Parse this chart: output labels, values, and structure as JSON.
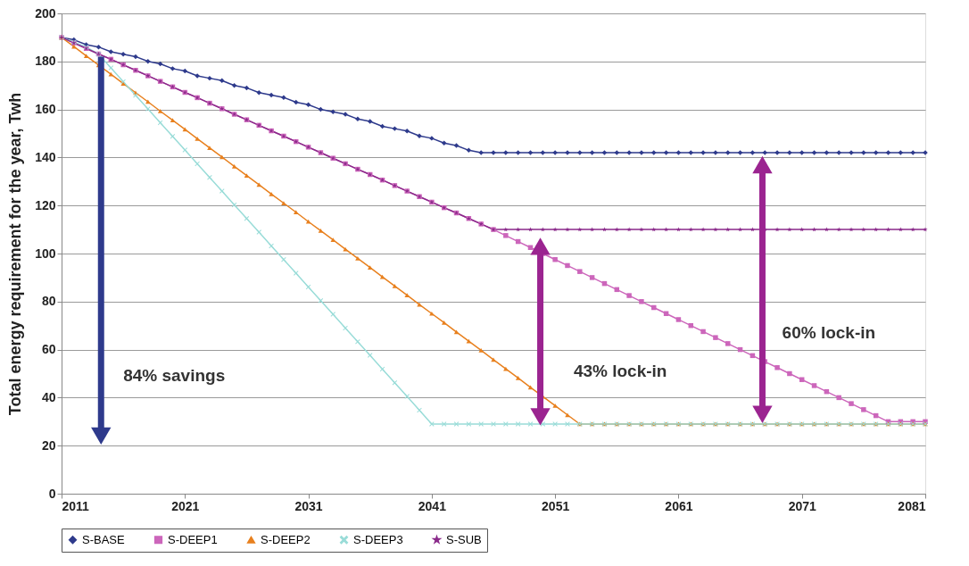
{
  "chart_data": {
    "type": "line",
    "ylabel": "Total energy requirement for the year, Twh",
    "x": [
      2011,
      2012,
      2013,
      2014,
      2015,
      2016,
      2017,
      2018,
      2019,
      2020,
      2021,
      2022,
      2023,
      2024,
      2025,
      2026,
      2027,
      2028,
      2029,
      2030,
      2031,
      2032,
      2033,
      2034,
      2035,
      2036,
      2037,
      2038,
      2039,
      2040,
      2041,
      2042,
      2043,
      2044,
      2045,
      2046,
      2047,
      2048,
      2049,
      2050,
      2051,
      2052,
      2053,
      2054,
      2055,
      2056,
      2057,
      2058,
      2059,
      2060,
      2061,
      2062,
      2063,
      2064,
      2065,
      2066,
      2067,
      2068,
      2069,
      2070,
      2071,
      2072,
      2073,
      2074,
      2075,
      2076,
      2077,
      2078,
      2079,
      2080,
      2081
    ],
    "series": [
      {
        "name": "S-BASE",
        "color": "#2e3a8c",
        "marker": "diamond",
        "values": [
          190,
          189,
          187,
          186,
          184,
          183,
          182,
          180,
          179,
          177,
          176,
          174,
          173,
          172,
          170,
          169,
          167,
          166,
          165,
          163,
          162,
          160,
          159,
          158,
          156,
          155,
          153,
          152,
          151,
          149,
          148,
          146,
          145,
          143,
          142,
          142,
          142,
          142,
          142,
          142,
          142,
          142,
          142,
          142,
          142,
          142,
          142,
          142,
          142,
          142,
          142,
          142,
          142,
          142,
          142,
          142,
          142,
          142,
          142,
          142,
          142,
          142,
          142,
          142,
          142,
          142,
          142,
          142,
          142,
          142,
          142
        ]
      },
      {
        "name": "S-DEEP1",
        "color": "#cc66bb",
        "marker": "square",
        "values": [
          190,
          187.7,
          185.4,
          183.1,
          180.9,
          178.6,
          176.3,
          174,
          171.7,
          169.4,
          167.1,
          164.9,
          162.6,
          160.3,
          158,
          155.7,
          153.4,
          151.1,
          148.9,
          146.6,
          144.3,
          142,
          139.7,
          137.4,
          135.1,
          132.9,
          130.6,
          128.3,
          126,
          123.7,
          121.4,
          119.1,
          116.9,
          114.6,
          112.3,
          110,
          107.5,
          105,
          102.5,
          100,
          97.5,
          95,
          92.5,
          90,
          87.5,
          85,
          82.5,
          80,
          77.5,
          75,
          72.5,
          70,
          67.5,
          65,
          62.5,
          60,
          57.5,
          55,
          52.5,
          50,
          47.5,
          45,
          42.5,
          40,
          37.5,
          35,
          32.5,
          30,
          30,
          30,
          30
        ]
      },
      {
        "name": "S-DEEP2",
        "color": "#e8801e",
        "marker": "triangle",
        "values": [
          190,
          186.2,
          182.3,
          178.5,
          174.7,
          170.8,
          167,
          163.2,
          159.3,
          155.5,
          151.7,
          147.8,
          144,
          140.2,
          136.3,
          132.5,
          128.7,
          124.8,
          121,
          117.2,
          113.3,
          109.5,
          105.7,
          101.8,
          98,
          94.2,
          90.3,
          86.5,
          82.7,
          78.8,
          75,
          71.2,
          67.3,
          63.5,
          59.7,
          55.8,
          52,
          48.2,
          44.3,
          40.5,
          36.7,
          32.8,
          29,
          29,
          29,
          29,
          29,
          29,
          29,
          29,
          29,
          29,
          29,
          29,
          29,
          29,
          29,
          29,
          29,
          29,
          29,
          29,
          29,
          29,
          29,
          29,
          29,
          29,
          29,
          29,
          29
        ]
      },
      {
        "name": "S-DEEP3",
        "color": "#99dcd8",
        "marker": "cross",
        "values": [
          190,
          188,
          186,
          183,
          177.3,
          171.6,
          165.9,
          160.2,
          154.5,
          148.8,
          143.1,
          137.4,
          131.7,
          126,
          120.3,
          114.6,
          108.9,
          103.2,
          97.5,
          91.8,
          86.1,
          80.4,
          74.7,
          69,
          63.3,
          57.6,
          51.9,
          46.2,
          40.5,
          34.8,
          29,
          29,
          29,
          29,
          29,
          29,
          29,
          29,
          29,
          29,
          29,
          29,
          29,
          29,
          29,
          29,
          29,
          29,
          29,
          29,
          29,
          29,
          29,
          29,
          29,
          29,
          29,
          29,
          29,
          29,
          29,
          29,
          29,
          29,
          29,
          29,
          29,
          29,
          29,
          29,
          29
        ]
      },
      {
        "name": "S-SUB",
        "color": "#8a2a8a",
        "marker": "star",
        "values": [
          190,
          187.7,
          185.4,
          183.1,
          180.9,
          178.6,
          176.3,
          174,
          171.7,
          169.4,
          167.1,
          164.9,
          162.6,
          160.3,
          158,
          155.7,
          153.4,
          151.1,
          148.9,
          146.6,
          144.3,
          142,
          139.7,
          137.4,
          135.1,
          132.9,
          130.6,
          128.3,
          126,
          123.7,
          121.4,
          119.1,
          116.9,
          114.6,
          112.3,
          110,
          110,
          110,
          110,
          110,
          110,
          110,
          110,
          110,
          110,
          110,
          110,
          110,
          110,
          110,
          110,
          110,
          110,
          110,
          110,
          110,
          110,
          110,
          110,
          110,
          110,
          110,
          110,
          110,
          110,
          110,
          110,
          110,
          110,
          110,
          110
        ]
      }
    ],
    "xlim": [
      2011,
      2081
    ],
    "xticks": [
      2011,
      2021,
      2031,
      2041,
      2051,
      2061,
      2071,
      2081
    ],
    "ylim": [
      0,
      200
    ],
    "yticks": [
      0,
      20,
      40,
      60,
      80,
      100,
      120,
      140,
      160,
      180,
      200
    ],
    "grid": "y",
    "legend": "bottom",
    "line_style": "solid",
    "annotations": [
      "84% savings",
      "43% lock-in",
      "60% lock-in"
    ]
  }
}
